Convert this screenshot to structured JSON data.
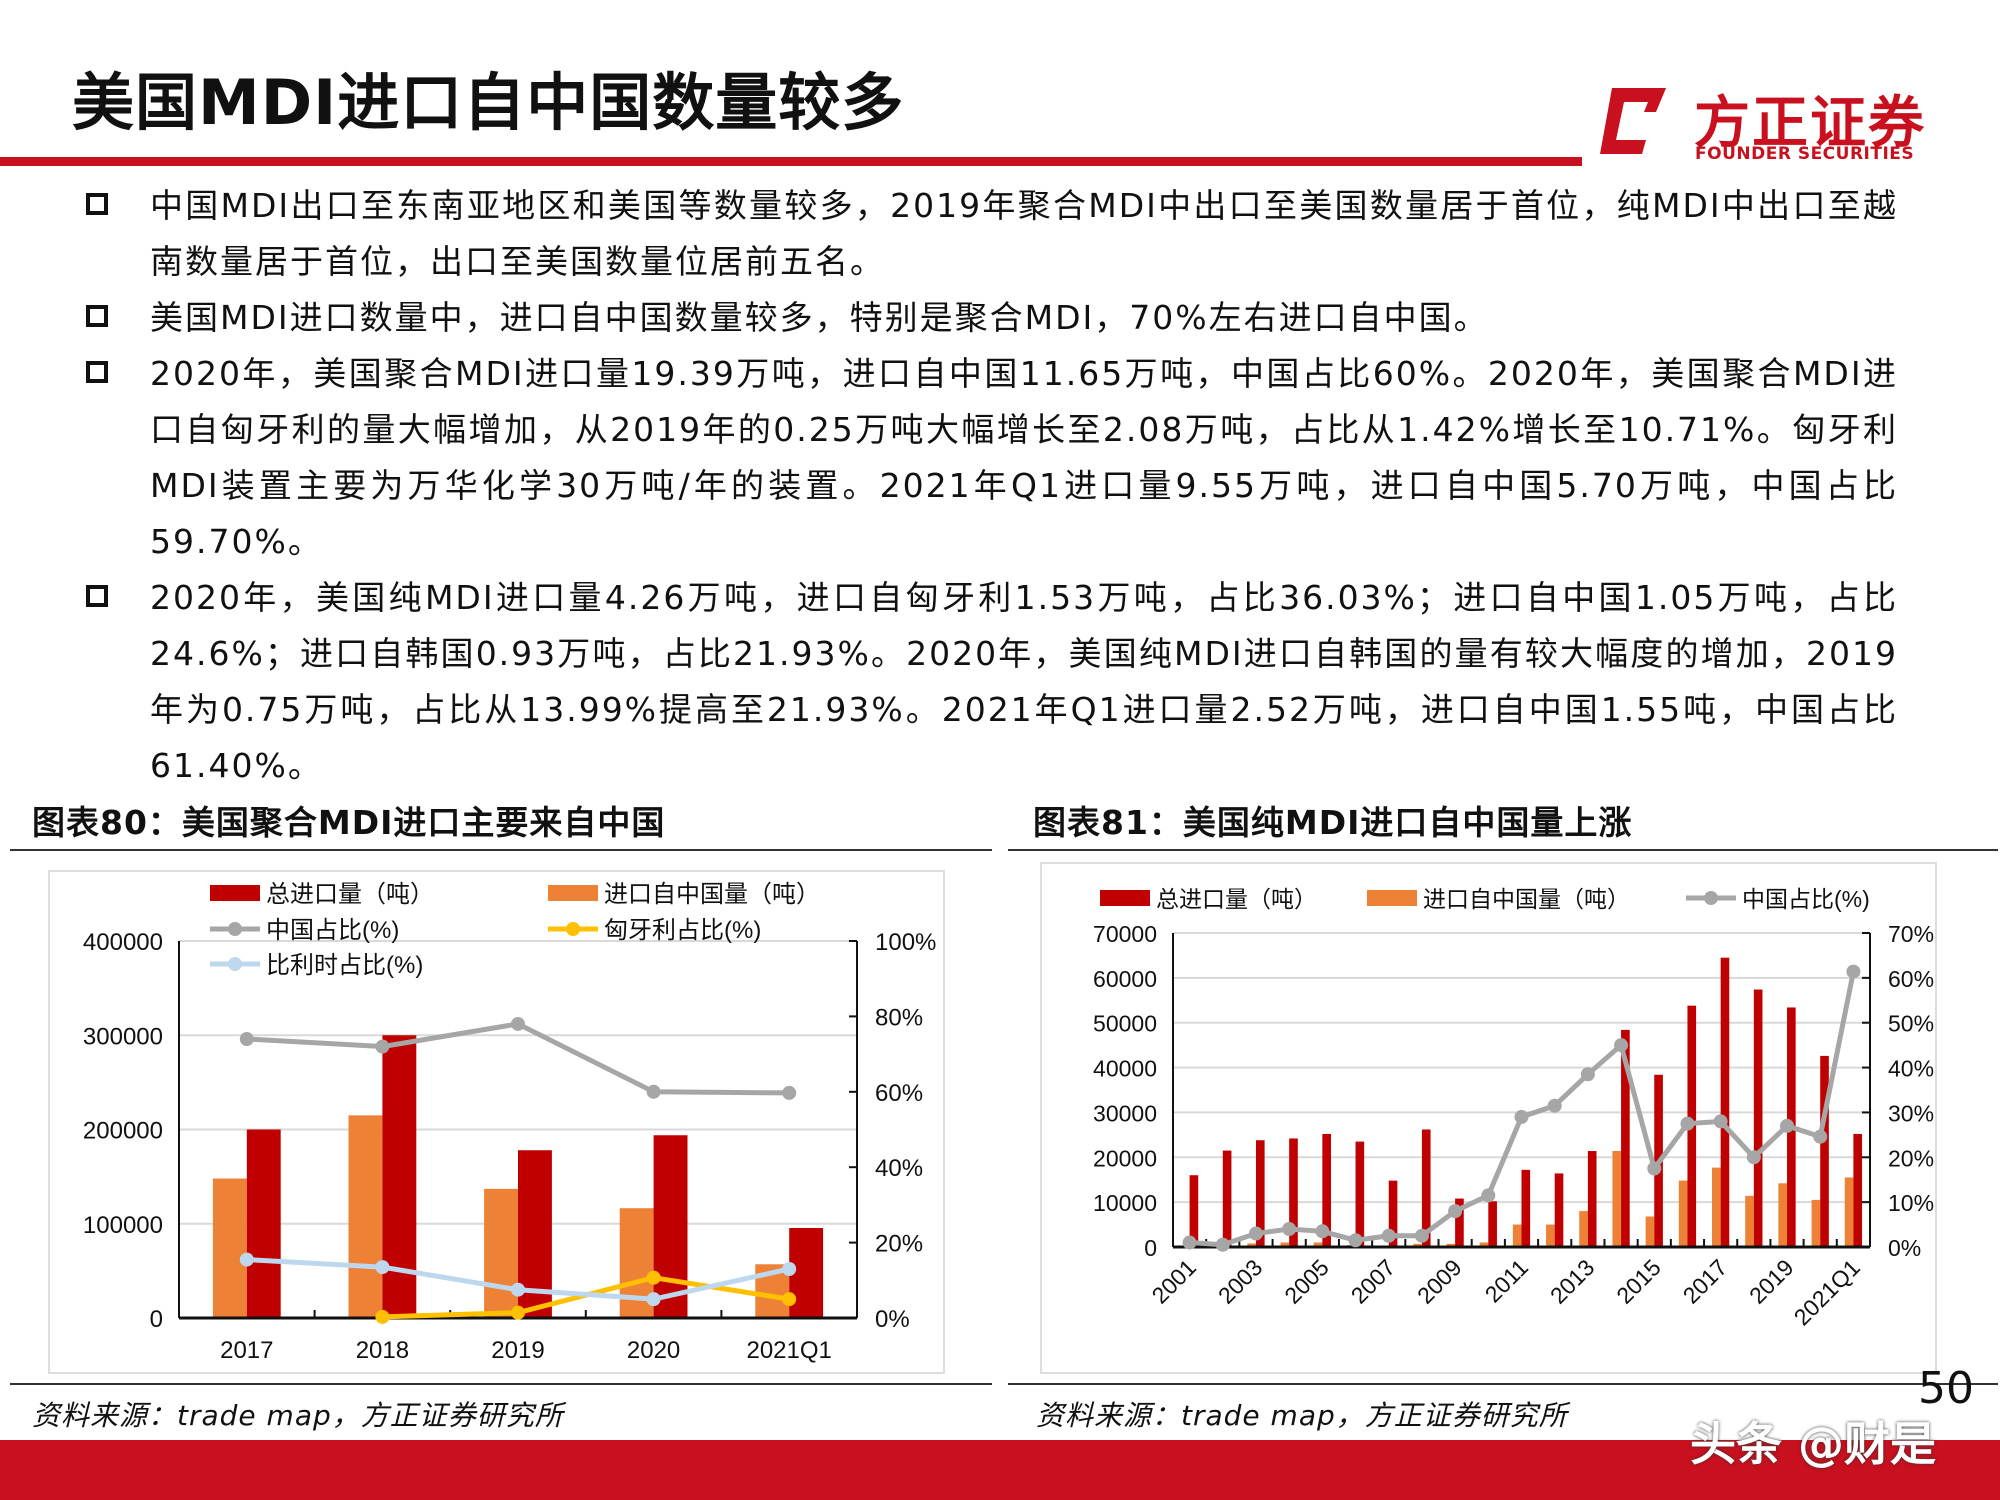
{
  "header": {
    "title": "美国MDI进口自中国数量较多",
    "logo_cn": "方正证券",
    "logo_en": "FOUNDER SECURITIES",
    "brand_color": "#c8101e"
  },
  "bullets": [
    "中国MDI出口至东南亚地区和美国等数量较多，2019年聚合MDI中出口至美国数量居于首位，纯MDI中出口至越南数量居于首位，出口至美国数量位居前五名。",
    "美国MDI进口数量中，进口自中国数量较多，特别是聚合MDI，70%左右进口自中国。",
    "2020年，美国聚合MDI进口量19.39万吨，进口自中国11.65万吨，中国占比60%。2020年，美国聚合MDI进口自匈牙利的量大幅增加，从2019年的0.25万吨大幅增长至2.08万吨，占比从1.42%增长至10.71%。匈牙利MDI装置主要为万华化学30万吨/年的装置。2021年Q1进口量9.55万吨，进口自中国5.70万吨，中国占比59.70%。",
    "2020年，美国纯MDI进口量4.26万吨，进口自匈牙利1.53万吨，占比36.03%；进口自中国1.05万吨，占比24.6%；进口自韩国0.93万吨，占比21.93%。2020年，美国纯MDI进口自韩国的量有较大幅度的增加，2019年为0.75万吨，占比从13.99%提高至21.93%。2021年Q1进口量2.52万吨，进口自中国1.55吨，中国占比61.40%。"
  ],
  "figures": {
    "left_title": "图表80：美国聚合MDI进口主要来自中国",
    "right_title": "图表81：美国纯MDI进口自中国量上涨",
    "left_source": "资料来源：trade map，方正证券研究所",
    "right_source": "资料来源：trade map，方正证券研究所"
  },
  "page_number": "50",
  "watermark": "头条 @财是",
  "chart_data": [
    {
      "type": "bar",
      "title": "图表80：美国聚合MDI进口主要来自中国",
      "categories": [
        "2017",
        "2018",
        "2019",
        "2020",
        "2021Q1"
      ],
      "ylim": [
        0,
        400000
      ],
      "yticks": [
        "0",
        "100000",
        "200000",
        "300000",
        "400000"
      ],
      "y2lim": [
        0,
        100
      ],
      "y2ticks": [
        "0%",
        "20%",
        "40%",
        "60%",
        "80%",
        "100%"
      ],
      "series": [
        {
          "name": "进口自中国量（吨）",
          "kind": "bar",
          "axis": "left",
          "color": "#ed8136",
          "values": [
            148000,
            215000,
            137000,
            116500,
            57000
          ]
        },
        {
          "name": "总进口量（吨）",
          "kind": "bar",
          "axis": "left",
          "color": "#c00000",
          "values": [
            200000,
            300000,
            178000,
            193900,
            95500
          ]
        },
        {
          "name": "中国占比(%)",
          "kind": "line",
          "axis": "right",
          "color": "#a6a6a6",
          "values": [
            74,
            72,
            78,
            60,
            59.7
          ]
        },
        {
          "name": "匈牙利占比(%)",
          "kind": "line",
          "axis": "right",
          "color": "#ffc000",
          "values": [
            null,
            0.3,
            1.42,
            10.71,
            5
          ]
        },
        {
          "name": "比利时占比(%)",
          "kind": "line",
          "axis": "right",
          "color": "#bdd7ee",
          "values": [
            15.5,
            13.5,
            7.5,
            5,
            13
          ]
        }
      ],
      "legend": [
        {
          "name": "总进口量（吨）",
          "kind": "bar",
          "color": "#c00000"
        },
        {
          "name": "进口自中国量（吨）",
          "kind": "bar",
          "color": "#ed8136"
        },
        {
          "name": "中国占比(%)",
          "kind": "line",
          "color": "#a6a6a6"
        },
        {
          "name": "匈牙利占比(%)",
          "kind": "line",
          "color": "#ffc000"
        },
        {
          "name": "比利时占比(%)",
          "kind": "line",
          "color": "#bdd7ee"
        }
      ],
      "legend_position": "top",
      "grid": true
    },
    {
      "type": "bar",
      "title": "图表81：美国纯MDI进口自中国量上涨",
      "categories": [
        "2001",
        "2002",
        "2003",
        "2004",
        "2005",
        "2006",
        "2007",
        "2008",
        "2009",
        "2010",
        "2011",
        "2012",
        "2013",
        "2014",
        "2015",
        "2016",
        "2017",
        "2018",
        "2019",
        "2020",
        "2021Q1"
      ],
      "xtick_labels": [
        "2001",
        "",
        "2003",
        "",
        "2005",
        "",
        "2007",
        "",
        "2009",
        "",
        "2011",
        "",
        "2013",
        "",
        "2015",
        "",
        "2017",
        "",
        "2019",
        "",
        "2021Q1"
      ],
      "ylim": [
        0,
        70000
      ],
      "yticks": [
        "0",
        "10000",
        "20000",
        "30000",
        "40000",
        "50000",
        "60000",
        "70000"
      ],
      "y2lim": [
        0,
        70
      ],
      "y2ticks": [
        "0%",
        "10%",
        "20%",
        "30%",
        "40%",
        "50%",
        "60%",
        "70%"
      ],
      "series": [
        {
          "name": "进口自中国量（吨）",
          "kind": "bar",
          "axis": "left",
          "color": "#ed8136",
          "values": [
            200,
            100,
            800,
            1000,
            1000,
            400,
            300,
            700,
            700,
            1000,
            5000,
            5000,
            8000,
            21400,
            6800,
            14800,
            17700,
            11400,
            14200,
            10500,
            15500
          ]
        },
        {
          "name": "总进口量（吨）",
          "kind": "bar",
          "axis": "left",
          "color": "#c00000",
          "values": [
            16000,
            21500,
            23800,
            24200,
            25200,
            23500,
            14800,
            26200,
            10800,
            10200,
            17200,
            16400,
            21400,
            48400,
            38400,
            53800,
            64500,
            57400,
            53400,
            42600,
            25200
          ]
        },
        {
          "name": "中国占比(%)",
          "kind": "line",
          "axis": "right",
          "color": "#a6a6a6",
          "values": [
            1,
            0.5,
            3,
            4,
            3.5,
            1.5,
            2.5,
            2.5,
            8,
            11.5,
            29,
            31.5,
            38.5,
            45,
            17.5,
            27.5,
            28,
            20,
            27,
            24.6,
            61.4
          ]
        }
      ],
      "legend": [
        {
          "name": "总进口量（吨）",
          "kind": "bar",
          "color": "#c00000"
        },
        {
          "name": "进口自中国量（吨）",
          "kind": "bar",
          "color": "#ed8136"
        },
        {
          "name": "中国占比(%)",
          "kind": "line",
          "color": "#a6a6a6"
        }
      ],
      "legend_position": "top",
      "grid": true
    }
  ]
}
